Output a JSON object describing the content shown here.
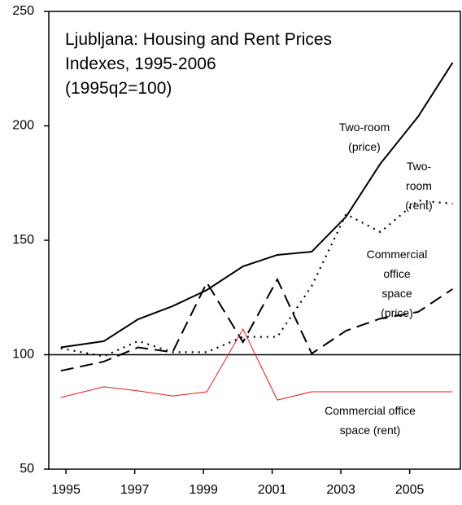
{
  "chart_data": {
    "type": "line",
    "title": "Ljubljana: Housing and Rent Prices\nIndexes, 1995-2006\n(1995q2=100)",
    "x": [
      1994.85,
      1996.1,
      1997.1,
      1998.1,
      1999.1,
      2000.15,
      2001.15,
      2002.15,
      2003.15,
      2004.15,
      2005.25,
      2006.25
    ],
    "series": [
      {
        "name": "Two-room\n(price)",
        "color": "#000000",
        "style": "solid",
        "values": [
          103.2,
          105.9,
          115.5,
          121.2,
          128.3,
          138.6,
          143.6,
          145,
          160.3,
          183.5,
          204.1,
          227.6
        ]
      },
      {
        "name": "Two-room\n(rent)",
        "color": "#000000",
        "style": "dotted",
        "values": [
          102.8,
          99.3,
          106,
          101.1,
          101.1,
          107.8,
          107.8,
          130,
          161.4,
          153.6,
          167.4,
          166
        ]
      },
      {
        "name": "Commercial office\nspace (price)",
        "color": "#000000",
        "style": "dashed",
        "values": [
          93,
          97,
          103.2,
          101.1,
          131.5,
          105.5,
          132.9,
          100.5,
          110.5,
          115.8,
          118.7,
          128.7
        ]
      },
      {
        "name": "Commercial office\nspace (rent)",
        "color": "#e8191a",
        "style": "thin",
        "values": [
          81.3,
          86,
          84.2,
          82,
          83.8,
          111.2,
          80.2,
          83.8,
          83.8,
          83.8,
          83.8,
          83.8
        ]
      }
    ],
    "reference_line": 100,
    "xlim": [
      1994.5,
      2006.5
    ],
    "xticks": [
      1995,
      1997,
      1999,
      2001,
      2003,
      2005
    ],
    "ylim": [
      50,
      250
    ],
    "yticks": [
      50,
      100,
      150,
      200,
      250
    ]
  }
}
